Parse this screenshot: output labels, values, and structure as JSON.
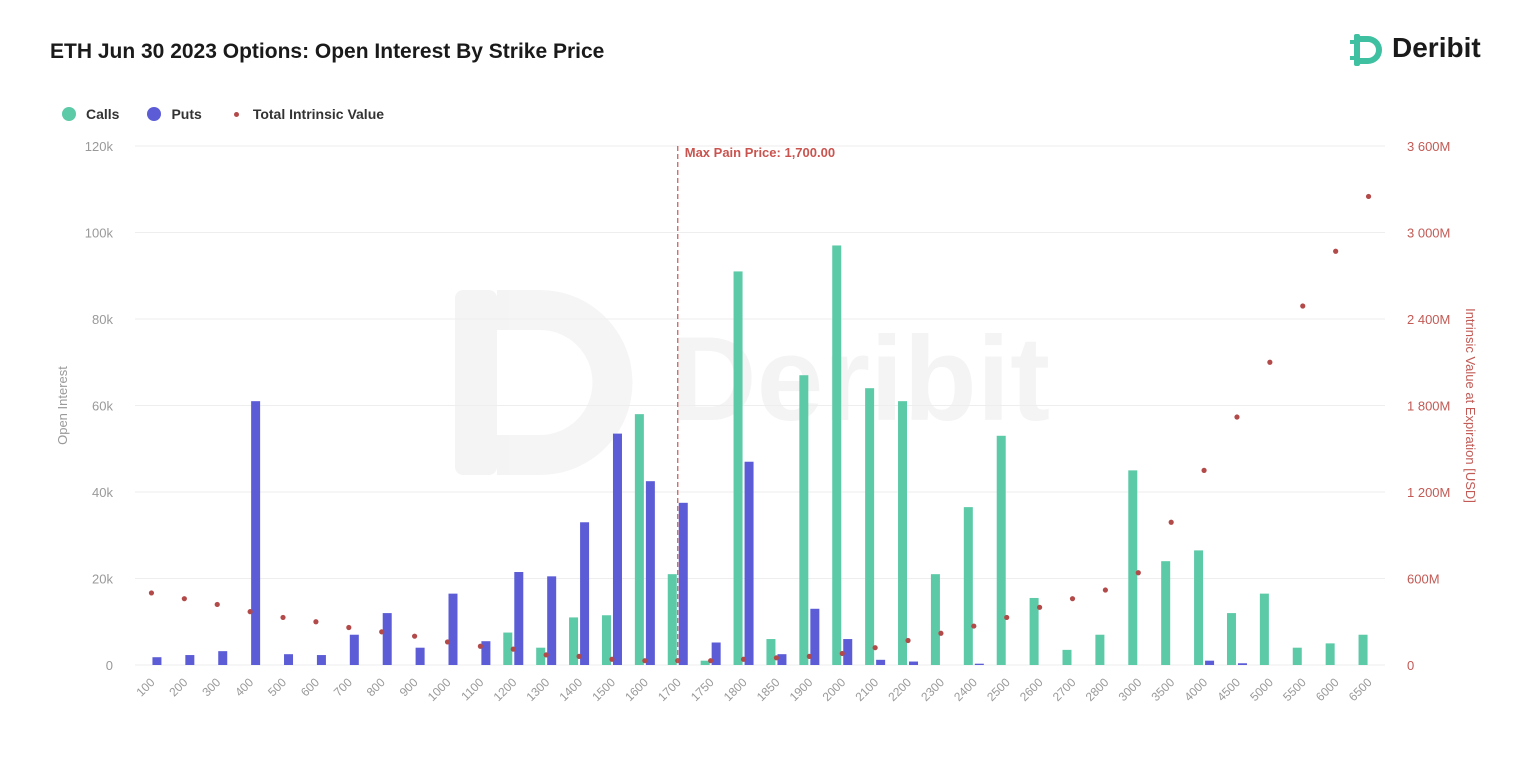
{
  "title": "ETH Jun 30 2023 Options: Open Interest By Strike Price",
  "brand": {
    "name": "Deribit",
    "color": "#3fc0a0",
    "watermark": "Deribit"
  },
  "legend": [
    {
      "label": "Calls",
      "color": "#5cc9a7",
      "shape": "dot"
    },
    {
      "label": "Puts",
      "color": "#5b5cd6",
      "shape": "dot"
    },
    {
      "label": "Total Intrinsic Value",
      "color": "#b34a4a",
      "shape": "small-dot"
    }
  ],
  "annotation": {
    "label": "Max Pain Price: 1,700.00",
    "category": "1700",
    "color": "#c9544f"
  },
  "chart_data": {
    "type": "bar",
    "title": "ETH Jun 30 2023 Options: Open Interest By Strike Price",
    "ylabel": "Open Interest",
    "y2label": "Intrinsic Value at Expiration [USD]",
    "ylim": [
      0,
      120000
    ],
    "y2lim": [
      0,
      3600000000
    ],
    "yticks": [
      "0",
      "20k",
      "40k",
      "60k",
      "80k",
      "100k",
      "120k"
    ],
    "y2ticks": [
      "0",
      "600M",
      "1 200M",
      "1 800M",
      "2 400M",
      "3 000M",
      "3 600M"
    ],
    "grid": true,
    "legend_position": "top-left",
    "categories": [
      "100",
      "200",
      "300",
      "400",
      "500",
      "600",
      "700",
      "800",
      "900",
      "1000",
      "1100",
      "1200",
      "1300",
      "1400",
      "1500",
      "1600",
      "1700",
      "1750",
      "1800",
      "1850",
      "1900",
      "2000",
      "2100",
      "2200",
      "2300",
      "2400",
      "2500",
      "2600",
      "2700",
      "2800",
      "3000",
      "3500",
      "4000",
      "4500",
      "5000",
      "5500",
      "6000",
      "6500"
    ],
    "series": [
      {
        "name": "Calls",
        "axis": "left",
        "color": "#5cc9a7",
        "values": [
          0,
          0,
          0,
          0,
          0,
          0,
          0,
          0,
          0,
          0,
          0,
          7500,
          4000,
          11000,
          11500,
          58000,
          21000,
          1000,
          91000,
          6000,
          67000,
          97000,
          64000,
          61000,
          21000,
          36500,
          53000,
          15500,
          3500,
          7000,
          45000,
          24000,
          26500,
          12000,
          16500,
          4000,
          5000,
          7000
        ]
      },
      {
        "name": "Puts",
        "axis": "left",
        "color": "#5b5cd6",
        "values": [
          1800,
          2300,
          3200,
          61000,
          2500,
          2300,
          7000,
          12000,
          4000,
          16500,
          5500,
          21500,
          20500,
          33000,
          53500,
          42500,
          37500,
          5200,
          47000,
          2500,
          13000,
          6000,
          1200,
          800,
          0,
          300,
          0,
          0,
          0,
          0,
          0,
          0,
          1000,
          400,
          0,
          0,
          0,
          0
        ]
      },
      {
        "name": "Total Intrinsic Value",
        "axis": "right",
        "type": "scatter",
        "color": "#b34a4a",
        "values": [
          500000000,
          460000000,
          420000000,
          370000000,
          330000000,
          300000000,
          260000000,
          230000000,
          200000000,
          160000000,
          130000000,
          110000000,
          70000000,
          60000000,
          40000000,
          30000000,
          30000000,
          30000000,
          40000000,
          50000000,
          60000000,
          80000000,
          120000000,
          170000000,
          220000000,
          270000000,
          330000000,
          400000000,
          460000000,
          520000000,
          640000000,
          990000000,
          1350000000,
          1720000000,
          2100000000,
          2490000000,
          2870000000,
          3250000000
        ]
      }
    ]
  }
}
